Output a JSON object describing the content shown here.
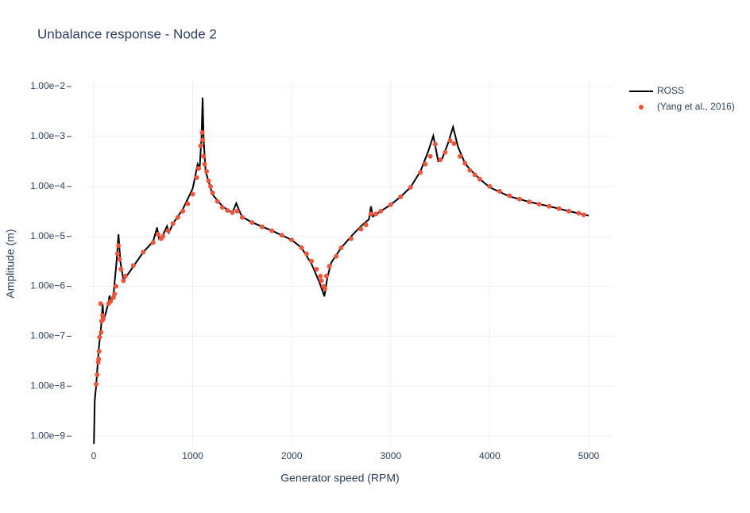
{
  "chart_data": {
    "type": "line",
    "title": "Unbalance response - Node 2",
    "x_label": "Generator speed (RPM)",
    "y_label": "Amplitude (m)",
    "xlim": [
      -64,
      5249
    ],
    "ylim": [
      5.6e-10,
      0.0139
    ],
    "y_log": true,
    "grid": true,
    "legend": "right",
    "xticks": [
      0,
      1000,
      2000,
      3000,
      4000,
      5000
    ],
    "yticks": [
      {
        "value": 1e-09,
        "label": "1.00e−9"
      },
      {
        "value": 1e-08,
        "label": "1.00e−8"
      },
      {
        "value": 1e-07,
        "label": "1.00e−7"
      },
      {
        "value": 1e-06,
        "label": "1.00e−6"
      },
      {
        "value": 1e-05,
        "label": "1.00e−5"
      },
      {
        "value": 0.0001,
        "label": "1.00e−4"
      },
      {
        "value": 0.001,
        "label": "1.00e−3"
      },
      {
        "value": 0.01,
        "label": "1.00e−2"
      }
    ],
    "series": [
      {
        "name": "ROSS",
        "mode": "lines",
        "color": "#000000",
        "x": [
          2,
          10,
          25,
          50,
          75,
          90,
          100,
          120,
          150,
          160,
          175,
          200,
          230,
          250,
          270,
          300,
          350,
          400,
          500,
          600,
          640,
          660,
          700,
          740,
          760,
          800,
          900,
          1000,
          1050,
          1070,
          1090,
          1100,
          1110,
          1130,
          1200,
          1300,
          1400,
          1440,
          1480,
          1500,
          1600,
          1800,
          2000,
          2100,
          2200,
          2280,
          2330,
          2360,
          2400,
          2500,
          2600,
          2700,
          2780,
          2800,
          2820,
          2900,
          3000,
          3100,
          3200,
          3300,
          3380,
          3430,
          3480,
          3520,
          3580,
          3630,
          3680,
          3750,
          3800,
          3900,
          4000,
          4200,
          4400,
          4600,
          4800,
          5000
        ],
        "values": [
          7e-10,
          5e-09,
          1.05e-08,
          5.4e-08,
          1.6e-07,
          4.4e-07,
          2.2e-07,
          2.8e-07,
          4.9e-07,
          6.5e-07,
          4.6e-07,
          7e-07,
          3e-06,
          1.1e-05,
          3e-06,
          1.35e-06,
          1.8e-06,
          2.5e-06,
          4.8e-06,
          7.9e-06,
          1.5e-05,
          9e-06,
          1.07e-05,
          1.6e-05,
          1.2e-05,
          1.8e-05,
          3.5e-05,
          9.1e-05,
          0.00028,
          0.00023,
          0.00107,
          0.006,
          0.0009,
          0.0002,
          6.9e-05,
          4e-05,
          2.96e-05,
          4.6e-05,
          2.96e-05,
          2.45e-05,
          1.9e-05,
          1.3e-05,
          8.5e-06,
          5.9e-06,
          2.8e-06,
          1.2e-06,
          6.3e-07,
          1.5e-06,
          3e-06,
          5.9e-06,
          1e-05,
          1.6e-05,
          2.2e-05,
          4e-05,
          2.5e-05,
          3.2e-05,
          4.3e-05,
          6.2e-05,
          9.6e-05,
          0.0002,
          0.00051,
          0.00103,
          0.00032,
          0.00036,
          0.00074,
          0.00155,
          0.00062,
          0.00029,
          0.00022,
          0.00014,
          9.6e-05,
          6.3e-05,
          4.9e-05,
          4e-05,
          3.2e-05,
          2.6e-05
        ]
      },
      {
        "name": "(Yang et al., 2016)",
        "mode": "markers",
        "color": "#EF553B",
        "x": [
          25,
          35,
          45,
          50,
          55,
          60,
          70,
          75,
          80,
          90,
          95,
          150,
          170,
          200,
          210,
          225,
          240,
          250,
          260,
          275,
          300,
          320,
          400,
          500,
          600,
          650,
          680,
          700,
          750,
          800,
          850,
          900,
          950,
          1000,
          1040,
          1060,
          1080,
          1095,
          1100,
          1110,
          1120,
          1140,
          1160,
          1180,
          1200,
          1250,
          1300,
          1350,
          1400,
          1450,
          1500,
          1600,
          1700,
          1800,
          1900,
          2000,
          2100,
          2150,
          2200,
          2250,
          2290,
          2300,
          2320,
          2335,
          2350,
          2380,
          2450,
          2500,
          2600,
          2700,
          2750,
          2800,
          2850,
          2900,
          3000,
          3100,
          3200,
          3300,
          3350,
          3400,
          3450,
          3500,
          3550,
          3600,
          3640,
          3700,
          3750,
          3800,
          3850,
          3900,
          4000,
          4100,
          4200,
          4300,
          4400,
          4500,
          4600,
          4700,
          4800,
          4900,
          4950
        ],
        "values": [
          1.1e-08,
          1.7e-08,
          3e-08,
          3.5e-08,
          5e-08,
          9.5e-08,
          4.5e-07,
          1.2e-07,
          2e-07,
          2.6e-07,
          2.2e-07,
          4.5e-07,
          5e-07,
          6e-07,
          7e-07,
          1e-06,
          4.5e-06,
          6.5e-06,
          3.5e-06,
          2.2e-06,
          1.3e-06,
          1.6e-06,
          2.6e-06,
          4.8e-06,
          7.5e-06,
          1.1e-05,
          9e-06,
          1e-05,
          1.3e-05,
          1.8e-05,
          2.4e-05,
          3.2e-05,
          4.5e-05,
          7e-05,
          0.00015,
          0.00023,
          0.00065,
          0.0012,
          0.00085,
          0.0004,
          0.00028,
          0.0002,
          0.00013,
          0.0001,
          7.5e-05,
          5e-05,
          3.8e-05,
          3.3e-05,
          3e-05,
          3.2e-05,
          2.4e-05,
          1.9e-05,
          1.55e-05,
          1.3e-05,
          1.05e-05,
          8.5e-06,
          5.9e-06,
          4.5e-06,
          3.2e-06,
          2.2e-06,
          1.6e-06,
          1.3e-06,
          1e-06,
          9e-07,
          1.6e-06,
          2.5e-06,
          4e-06,
          5.9e-06,
          9e-06,
          1.4e-05,
          1.7e-05,
          2.8e-05,
          2.8e-05,
          3.2e-05,
          4.3e-05,
          6.2e-05,
          9.6e-05,
          0.00019,
          0.00028,
          0.0004,
          0.0007,
          0.00034,
          0.00048,
          0.00082,
          0.00072,
          0.0004,
          0.00029,
          0.00021,
          0.00017,
          0.00014,
          0.0001,
          8e-05,
          6.5e-05,
          5.6e-05,
          4.9e-05,
          4.4e-05,
          4e-05,
          3.6e-05,
          3.2e-05,
          2.9e-05,
          2.7e-05
        ]
      }
    ]
  }
}
